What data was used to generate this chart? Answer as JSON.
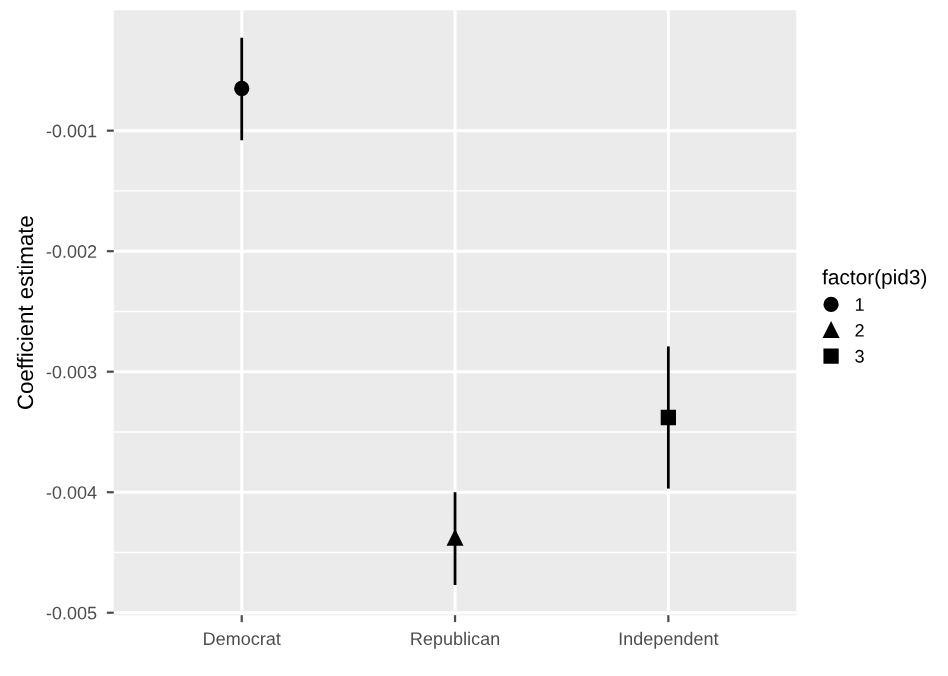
{
  "chart_data": {
    "type": "scatter",
    "ylabel": "Coefficient estimate",
    "legend_title": "factor(pid3)",
    "categories": [
      "Democrat",
      "Republican",
      "Independent"
    ],
    "series": [
      {
        "name": "1",
        "color": "#000000",
        "marker": "circle",
        "values": [
          -0.00065,
          null,
          null
        ],
        "errors": [
          [
            -0.00108,
            -0.00023
          ],
          null,
          null
        ]
      },
      {
        "name": "2",
        "color": "#000000",
        "marker": "triangle",
        "values": [
          null,
          -0.00438,
          null
        ],
        "errors": [
          null,
          [
            -0.00477,
            -0.004
          ],
          null
        ]
      },
      {
        "name": "3",
        "color": "#000000",
        "marker": "square",
        "values": [
          null,
          null,
          -0.00338
        ],
        "errors": [
          null,
          null,
          [
            -0.00397,
            -0.00279
          ]
        ]
      }
    ],
    "ylim": [
      -0.00502,
      0.0
    ],
    "yticks": [
      -0.005,
      -0.004,
      -0.003,
      -0.002,
      -0.001
    ],
    "grid": true,
    "legend": "right"
  }
}
